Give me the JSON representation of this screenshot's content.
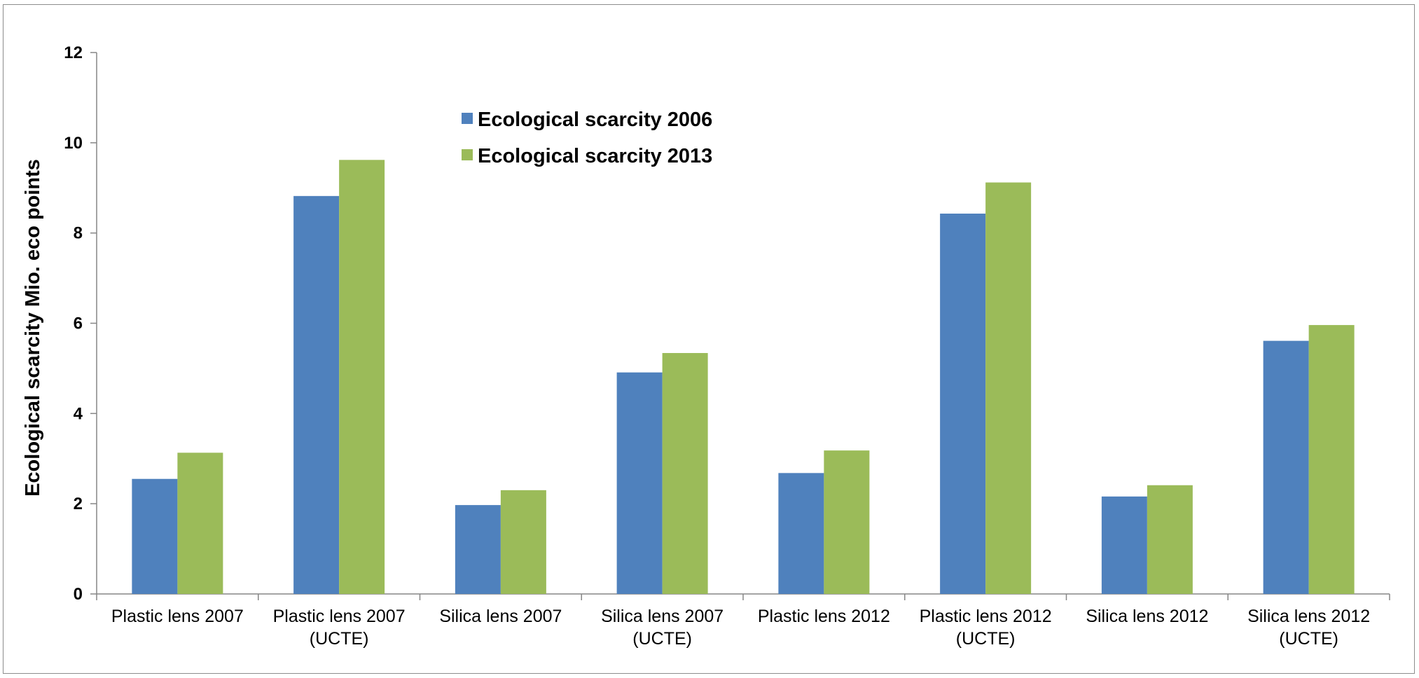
{
  "chart_data": {
    "type": "bar",
    "title": "",
    "ylabel": "Ecological scarcity Mio. eco points",
    "xlabel": "",
    "ylim": [
      0,
      12
    ],
    "yticks": [
      0,
      2,
      4,
      6,
      8,
      10,
      12
    ],
    "categories": [
      [
        "Plastic lens 2007"
      ],
      [
        "Plastic lens 2007",
        "(UCTE)"
      ],
      [
        "Silica lens 2007"
      ],
      [
        "Silica lens 2007",
        "(UCTE)"
      ],
      [
        "Plastic lens 2012"
      ],
      [
        "Plastic lens 2012",
        "(UCTE)"
      ],
      [
        "Silica lens 2012"
      ],
      [
        "Silica lens 2012",
        "(UCTE)"
      ]
    ],
    "series": [
      {
        "name": "Ecological scarcity 2006",
        "color": "#4f81bd",
        "values": [
          2.55,
          8.82,
          1.97,
          4.91,
          2.68,
          8.43,
          2.16,
          5.61
        ]
      },
      {
        "name": "Ecological scarcity 2013",
        "color": "#9bbb59",
        "values": [
          3.13,
          9.62,
          2.3,
          5.34,
          3.18,
          9.12,
          2.41,
          5.96
        ]
      }
    ],
    "legend_position": "top-center",
    "grid": false
  }
}
